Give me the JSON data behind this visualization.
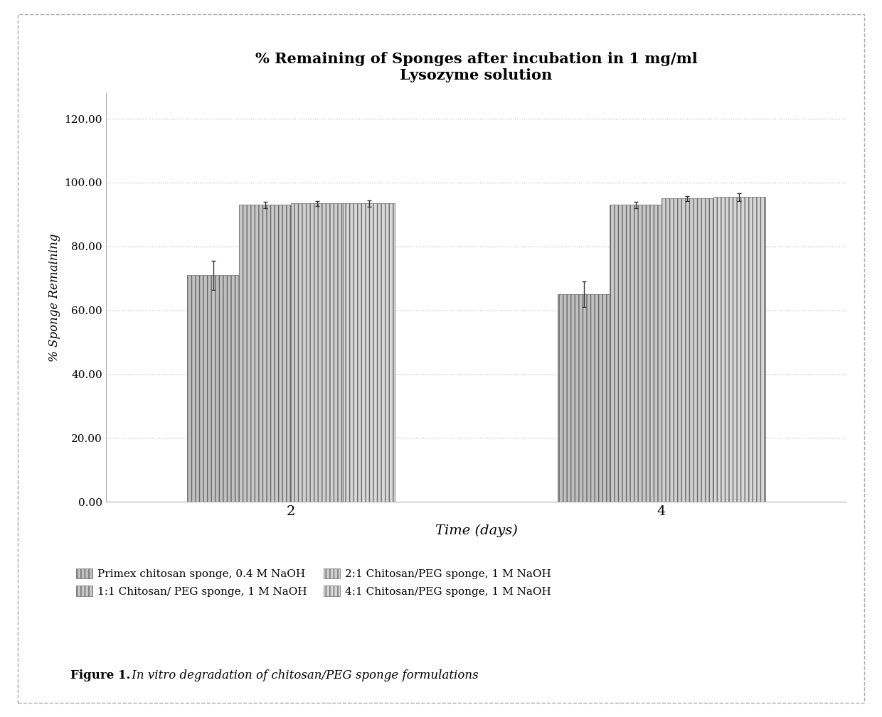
{
  "title_line1": "% Remaining of Sponges after incubation in 1 mg/ml",
  "title_line2": "Lysozyme solution",
  "xlabel": "Time (days)",
  "ylabel": "% Sponge Remaining",
  "groups": [
    "2",
    "4"
  ],
  "series": [
    {
      "label": "Primex chitosan sponge, 0.4 M NaOH",
      "values": [
        71.0,
        65.0
      ],
      "errors": [
        4.5,
        4.0
      ],
      "facecolor": "#c0c0c0",
      "hatch": "|||"
    },
    {
      "label": "1:1 Chitosan/ PEG sponge, 1 M NaOH",
      "values": [
        93.0,
        93.0
      ],
      "errors": [
        1.0,
        1.0
      ],
      "facecolor": "#c8c8c8",
      "hatch": "|||"
    },
    {
      "label": "2:1 Chitosan/PEG sponge, 1 M NaOH",
      "values": [
        93.5,
        95.0
      ],
      "errors": [
        0.8,
        0.8
      ],
      "facecolor": "#d0d0d0",
      "hatch": "|||"
    },
    {
      "label": "4:1 Chitosan/PEG sponge, 1 M NaOH",
      "values": [
        93.5,
        95.5
      ],
      "errors": [
        1.0,
        1.2
      ],
      "facecolor": "#d8d8d8",
      "hatch": "|||"
    }
  ],
  "ylim": [
    0,
    128
  ],
  "yticks": [
    0.0,
    20.0,
    40.0,
    60.0,
    80.0,
    100.0,
    120.0
  ],
  "ytick_labels": [
    "0.00",
    "20.00",
    "40.00",
    "60.00",
    "80.00",
    "100.00",
    "120.00"
  ],
  "group_positions": [
    1.5,
    3.5
  ],
  "bar_width": 0.28,
  "figure_caption_bold": "Figure 1.",
  "figure_caption_regular": " In vitro degradation of chitosan/PEG sponge formulations"
}
